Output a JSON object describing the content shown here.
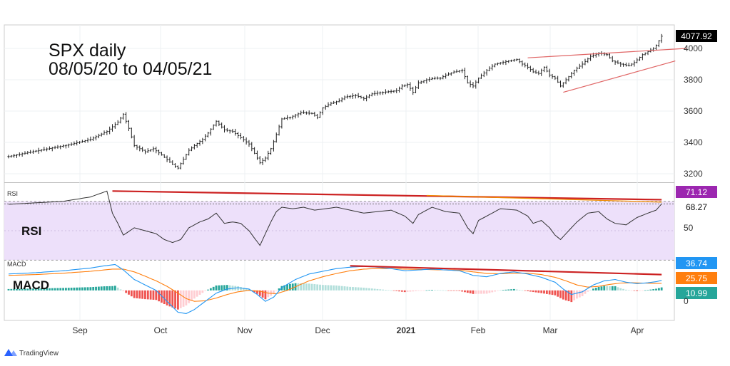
{
  "title_line1": "SPX daily",
  "title_line2": "08/05/20 to 04/05/21",
  "branding": "TradingView",
  "panes": {
    "rsi": {
      "tag": "RSI",
      "label": "RSI",
      "last": "68.27",
      "badge": "71.12",
      "tick": "50"
    },
    "macd": {
      "tag": "MACD",
      "label": "MACD",
      "badges": [
        "36.74",
        "25.75",
        "10.99"
      ],
      "tick": "0"
    }
  },
  "colors": {
    "price_bars": "#222222",
    "trend_lines": "#e06666",
    "divergence": "#cc2222",
    "rsi_band": "#ede0fa",
    "macd_line": "#2196f3",
    "signal_line": "#ff7f0e",
    "hist_up_strong": "#26a69a",
    "hist_up_weak": "#b2dfdb",
    "hist_down_strong": "#ef5350",
    "hist_down_weak": "#ffcdd2",
    "last_price_badge": "#000000",
    "rsi_badge": "#9c27b0"
  },
  "chart_data": {
    "type": "line",
    "symbol": "SPX",
    "timeframe": "daily",
    "x_labels": [
      "Sep",
      "Oct",
      "Nov",
      "Dec",
      "2021",
      "Feb",
      "Mar",
      "Apr"
    ],
    "price": {
      "last": "4077.92",
      "y_ticks": [
        3200,
        3400,
        3600,
        3800,
        4000
      ],
      "ylim": [
        3150,
        4150
      ],
      "waypoints": [
        [
          0,
          3310
        ],
        [
          10,
          3345
        ],
        [
          22,
          3385
        ],
        [
          30,
          3420
        ],
        [
          36,
          3470
        ],
        [
          40,
          3530
        ],
        [
          42,
          3580
        ],
        [
          44,
          3490
        ],
        [
          46,
          3380
        ],
        [
          50,
          3340
        ],
        [
          53,
          3360
        ],
        [
          56,
          3320
        ],
        [
          60,
          3260
        ],
        [
          62,
          3236
        ],
        [
          66,
          3350
        ],
        [
          68,
          3380
        ],
        [
          71,
          3420
        ],
        [
          73,
          3460
        ],
        [
          76,
          3535
        ],
        [
          79,
          3480
        ],
        [
          82,
          3470
        ],
        [
          85,
          3430
        ],
        [
          88,
          3390
        ],
        [
          90,
          3330
        ],
        [
          92,
          3270
        ],
        [
          94,
          3300
        ],
        [
          96,
          3360
        ],
        [
          98,
          3450
        ],
        [
          100,
          3550
        ],
        [
          103,
          3560
        ],
        [
          107,
          3590
        ],
        [
          111,
          3585
        ],
        [
          113,
          3560
        ],
        [
          115,
          3620
        ],
        [
          118,
          3650
        ],
        [
          121,
          3665
        ],
        [
          123,
          3690
        ],
        [
          127,
          3700
        ],
        [
          130,
          3680
        ],
        [
          133,
          3710
        ],
        [
          137,
          3720
        ],
        [
          142,
          3730
        ],
        [
          144,
          3760
        ],
        [
          146,
          3770
        ],
        [
          148,
          3720
        ],
        [
          150,
          3780
        ],
        [
          153,
          3800
        ],
        [
          156,
          3810
        ],
        [
          158,
          3810
        ],
        [
          160,
          3830
        ],
        [
          163,
          3850
        ],
        [
          166,
          3860
        ],
        [
          168,
          3780
        ],
        [
          170,
          3760
        ],
        [
          172,
          3810
        ],
        [
          175,
          3860
        ],
        [
          178,
          3900
        ],
        [
          183,
          3920
        ],
        [
          186,
          3930
        ],
        [
          188,
          3900
        ],
        [
          190,
          3880
        ],
        [
          192,
          3850
        ],
        [
          194,
          3840
        ],
        [
          196,
          3880
        ],
        [
          198,
          3830
        ],
        [
          200,
          3810
        ],
        [
          202,
          3760
        ],
        [
          204,
          3800
        ],
        [
          207,
          3860
        ],
        [
          210,
          3900
        ],
        [
          213,
          3950
        ],
        [
          216,
          3970
        ],
        [
          219,
          3960
        ],
        [
          221,
          3920
        ],
        [
          224,
          3900
        ],
        [
          227,
          3890
        ],
        [
          229,
          3910
        ],
        [
          232,
          3960
        ],
        [
          234,
          3980
        ],
        [
          236,
          4000
        ],
        [
          237,
          4020
        ],
        [
          239,
          4077.92
        ]
      ]
    },
    "rsi": {
      "last": 68.27,
      "level_marker": 71.12,
      "y_ticks": [
        50
      ],
      "ylim": [
        35,
        82
      ],
      "band": [
        30,
        70
      ],
      "waypoints": [
        [
          0,
          68
        ],
        [
          10,
          69
        ],
        [
          20,
          70
        ],
        [
          30,
          73
        ],
        [
          36,
          77
        ],
        [
          38,
          62
        ],
        [
          40,
          55
        ],
        [
          42,
          47
        ],
        [
          46,
          52
        ],
        [
          50,
          50
        ],
        [
          54,
          48
        ],
        [
          57,
          44
        ],
        [
          60,
          42
        ],
        [
          63,
          44
        ],
        [
          66,
          52
        ],
        [
          70,
          56
        ],
        [
          73,
          58
        ],
        [
          76,
          62
        ],
        [
          79,
          55
        ],
        [
          82,
          56
        ],
        [
          85,
          55
        ],
        [
          88,
          50
        ],
        [
          90,
          45
        ],
        [
          92,
          40
        ],
        [
          94,
          48
        ],
        [
          96,
          56
        ],
        [
          98,
          63
        ],
        [
          100,
          66
        ],
        [
          104,
          65
        ],
        [
          108,
          66
        ],
        [
          112,
          64
        ],
        [
          116,
          65
        ],
        [
          120,
          66
        ],
        [
          125,
          64
        ],
        [
          130,
          62
        ],
        [
          135,
          63
        ],
        [
          140,
          64
        ],
        [
          145,
          60
        ],
        [
          148,
          55
        ],
        [
          150,
          61
        ],
        [
          155,
          66
        ],
        [
          160,
          63
        ],
        [
          165,
          62
        ],
        [
          168,
          52
        ],
        [
          170,
          48
        ],
        [
          172,
          57
        ],
        [
          176,
          61
        ],
        [
          180,
          65
        ],
        [
          186,
          64
        ],
        [
          190,
          60
        ],
        [
          192,
          55
        ],
        [
          195,
          57
        ],
        [
          198,
          52
        ],
        [
          200,
          47
        ],
        [
          202,
          44
        ],
        [
          205,
          50
        ],
        [
          208,
          56
        ],
        [
          212,
          62
        ],
        [
          216,
          63
        ],
        [
          219,
          58
        ],
        [
          222,
          55
        ],
        [
          226,
          54
        ],
        [
          230,
          59
        ],
        [
          234,
          62
        ],
        [
          237,
          64
        ],
        [
          239,
          68.27
        ]
      ]
    },
    "macd": {
      "macd_last": 36.74,
      "signal_last": 25.75,
      "hist_last": 10.99,
      "y_ticks": [
        0
      ],
      "ylim": [
        -110,
        130
      ],
      "macd_waypoints": [
        [
          0,
          60
        ],
        [
          10,
          65
        ],
        [
          20,
          72
        ],
        [
          30,
          82
        ],
        [
          35,
          90
        ],
        [
          39,
          95
        ],
        [
          42,
          75
        ],
        [
          46,
          40
        ],
        [
          50,
          20
        ],
        [
          54,
          0
        ],
        [
          58,
          -40
        ],
        [
          62,
          -80
        ],
        [
          65,
          -85
        ],
        [
          68,
          -70
        ],
        [
          72,
          -40
        ],
        [
          76,
          -10
        ],
        [
          80,
          5
        ],
        [
          84,
          10
        ],
        [
          88,
          5
        ],
        [
          91,
          -15
        ],
        [
          94,
          -40
        ],
        [
          97,
          -25
        ],
        [
          100,
          10
        ],
        [
          105,
          40
        ],
        [
          110,
          60
        ],
        [
          115,
          70
        ],
        [
          120,
          80
        ],
        [
          125,
          85
        ],
        [
          130,
          88
        ],
        [
          135,
          85
        ],
        [
          140,
          80
        ],
        [
          145,
          72
        ],
        [
          150,
          75
        ],
        [
          155,
          78
        ],
        [
          160,
          75
        ],
        [
          165,
          72
        ],
        [
          170,
          55
        ],
        [
          175,
          50
        ],
        [
          180,
          62
        ],
        [
          185,
          68
        ],
        [
          190,
          60
        ],
        [
          195,
          48
        ],
        [
          200,
          30
        ],
        [
          203,
          5
        ],
        [
          206,
          -15
        ],
        [
          210,
          -5
        ],
        [
          214,
          20
        ],
        [
          218,
          35
        ],
        [
          222,
          40
        ],
        [
          226,
          30
        ],
        [
          230,
          25
        ],
        [
          234,
          28
        ],
        [
          237,
          32
        ],
        [
          239,
          36.74
        ]
      ],
      "signal_waypoints": [
        [
          0,
          55
        ],
        [
          10,
          58
        ],
        [
          20,
          63
        ],
        [
          30,
          70
        ],
        [
          38,
          78
        ],
        [
          42,
          78
        ],
        [
          46,
          68
        ],
        [
          50,
          52
        ],
        [
          54,
          35
        ],
        [
          58,
          15
        ],
        [
          62,
          -10
        ],
        [
          65,
          -30
        ],
        [
          68,
          -40
        ],
        [
          72,
          -38
        ],
        [
          76,
          -28
        ],
        [
          80,
          -15
        ],
        [
          84,
          -5
        ],
        [
          88,
          0
        ],
        [
          92,
          -3
        ],
        [
          95,
          -10
        ],
        [
          98,
          -12
        ],
        [
          102,
          0
        ],
        [
          106,
          18
        ],
        [
          110,
          35
        ],
        [
          115,
          50
        ],
        [
          120,
          62
        ],
        [
          125,
          72
        ],
        [
          130,
          78
        ],
        [
          135,
          80
        ],
        [
          140,
          80
        ],
        [
          145,
          78
        ],
        [
          150,
          77
        ],
        [
          155,
          76
        ],
        [
          160,
          75
        ],
        [
          165,
          74
        ],
        [
          170,
          68
        ],
        [
          175,
          62
        ],
        [
          180,
          61
        ],
        [
          185,
          63
        ],
        [
          190,
          63
        ],
        [
          195,
          58
        ],
        [
          200,
          48
        ],
        [
          204,
          35
        ],
        [
          208,
          20
        ],
        [
          212,
          12
        ],
        [
          216,
          15
        ],
        [
          220,
          22
        ],
        [
          224,
          27
        ],
        [
          228,
          28
        ],
        [
          232,
          27
        ],
        [
          236,
          26
        ],
        [
          239,
          25.75
        ]
      ]
    },
    "trend_lines": {
      "upper_wedge": [
        [
          190,
          3940
        ],
        [
          248,
          4000
        ]
      ],
      "lower_wedge": [
        [
          203,
          3720
        ],
        [
          244,
          3920
        ]
      ],
      "rsi_divergence_main": [
        [
          38,
          77
        ],
        [
          239,
          71.12
        ]
      ],
      "rsi_divergence_short": [
        [
          153,
          74
        ],
        [
          239,
          69.5
        ]
      ],
      "macd_divergence": [
        [
          125,
          90
        ],
        [
          239,
          58
        ]
      ]
    }
  }
}
